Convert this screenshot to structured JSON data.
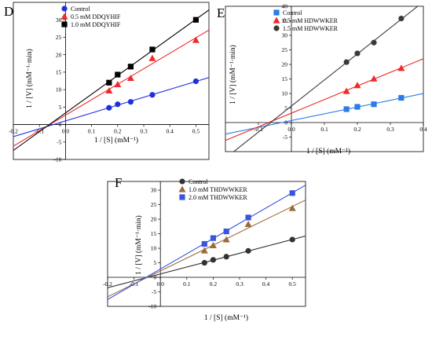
{
  "chart_data": [
    {
      "type": "scatter",
      "panel_label": "D",
      "title": "",
      "xlabel": "1 / [S] (mM⁻¹)",
      "ylabel": "1 / [V] (mM⁻¹·min)",
      "xlim": [
        -0.2,
        0.55
      ],
      "ylim": [
        -10,
        35
      ],
      "x_ticks": [
        -0.2,
        -0.1,
        0.0,
        0.1,
        0.2,
        0.3,
        0.4,
        0.5
      ],
      "y_ticks": [
        -10,
        -5,
        0,
        5,
        10,
        15,
        20,
        25,
        30
      ],
      "x_tick_labels": [
        "-0.2",
        "-0.1",
        "0.0",
        "0.1",
        "0.2",
        "0.3",
        "0.4",
        "0.5"
      ],
      "y_tick_labels": [
        "-10",
        "-5",
        "0",
        "5",
        "10",
        "15",
        "20",
        "25",
        "30"
      ],
      "legend_position": "top-left",
      "grid": false,
      "series": [
        {
          "name": "Control",
          "color": "#1f2fe0",
          "marker": "circle",
          "fit": [
            -0.2,
            0.55
          ],
          "x": [
            0.167,
            0.2,
            0.25,
            0.333,
            0.5
          ],
          "y": [
            4.8,
            5.8,
            6.5,
            8.5,
            12.4
          ]
        },
        {
          "name": "0.5 mM  DDQYHIF",
          "color": "#ee2a2a",
          "marker": "triangle",
          "fit": [
            -0.2,
            0.55
          ],
          "x": [
            0.167,
            0.2,
            0.25,
            0.333,
            0.5
          ],
          "y": [
            9.7,
            11.5,
            13.3,
            19.0,
            24.2
          ]
        },
        {
          "name": "1.0 mM  DDQYHIF",
          "color": "#000000",
          "marker": "square",
          "fit": [
            -0.2,
            0.55
          ],
          "x": [
            0.167,
            0.2,
            0.25,
            0.333,
            0.5
          ],
          "y": [
            12.0,
            14.3,
            16.6,
            21.5,
            30.0
          ]
        }
      ]
    },
    {
      "type": "scatter",
      "panel_label": "E",
      "title": "",
      "xlabel": "1 / [S] (mM⁻¹)",
      "ylabel": "1 / [V] (mM⁻¹·min)",
      "xlim": [
        -0.2,
        0.4
      ],
      "ylim": [
        -10,
        40
      ],
      "x_ticks": [
        -0.1,
        0.0,
        0.1,
        0.2,
        0.3,
        0.4
      ],
      "y_ticks": [
        -5,
        0,
        5,
        10,
        15,
        20,
        25,
        30,
        35,
        40
      ],
      "x_tick_labels": [
        "-0.1",
        "0.0",
        "0.1",
        "0.2",
        "0.3",
        "0.4"
      ],
      "y_tick_labels": [
        "-5",
        "0",
        "5",
        "10",
        "15",
        "20",
        "25",
        "30",
        "35",
        "40"
      ],
      "legend_position": "top-left",
      "grid": false,
      "series": [
        {
          "name": "Control",
          "color": "#2b7ce6",
          "marker": "square",
          "fit": [
            -0.2,
            0.4
          ],
          "x": [
            0.167,
            0.2,
            0.25,
            0.333
          ],
          "y": [
            4.6,
            5.4,
            6.3,
            8.5
          ]
        },
        {
          "name": "0.5 mM  HDWWKER",
          "color": "#ee2a2a",
          "marker": "triangle",
          "fit": [
            -0.2,
            0.4
          ],
          "x": [
            0.167,
            0.2,
            0.25,
            0.333
          ],
          "y": [
            10.8,
            12.8,
            15.1,
            18.7
          ]
        },
        {
          "name": "1.5 mM  HDWWKER",
          "color": "#3a3a3a",
          "marker": "circle",
          "fit": [
            -0.2,
            0.4
          ],
          "x": [
            0.167,
            0.2,
            0.25,
            0.333
          ],
          "y": [
            20.8,
            23.8,
            27.5,
            35.8
          ]
        }
      ]
    },
    {
      "type": "scatter",
      "panel_label": "F",
      "title": "",
      "xlabel": "1 / [S] (mM⁻¹)",
      "ylabel": "1 / [V] (mM⁻¹·min)",
      "xlim": [
        -0.2,
        0.55
      ],
      "ylim": [
        -10,
        33
      ],
      "x_ticks": [
        -0.2,
        -0.1,
        0.0,
        0.1,
        0.2,
        0.3,
        0.4,
        0.5
      ],
      "y_ticks": [
        -10,
        -5,
        0,
        5,
        10,
        15,
        20,
        25,
        30
      ],
      "x_tick_labels": [
        "-0.2",
        "-0.1",
        "0.0",
        "0.1",
        "0.2",
        "0.3",
        "0.4",
        "0.5"
      ],
      "y_tick_labels": [
        "-10",
        "-5",
        "0",
        "5",
        "10",
        "15",
        "20",
        "25",
        "30"
      ],
      "legend_position": "top-left",
      "grid": false,
      "series": [
        {
          "name": "Control",
          "color": "#333333",
          "marker": "circle",
          "fit": [
            -0.2,
            0.55
          ],
          "x": [
            0.167,
            0.2,
            0.25,
            0.333,
            0.5
          ],
          "y": [
            5.0,
            6.0,
            7.1,
            9.1,
            13.0
          ]
        },
        {
          "name": "1.0 mM  THDWWKER",
          "color": "#9a6a3c",
          "marker": "triangle",
          "fit": [
            -0.2,
            0.55
          ],
          "x": [
            0.167,
            0.2,
            0.25,
            0.333,
            0.5
          ],
          "y": [
            9.2,
            11.0,
            13.0,
            18.3,
            23.8
          ]
        },
        {
          "name": "2.0 mM  THDWWKER",
          "color": "#3a55dd",
          "marker": "square",
          "fit": [
            -0.2,
            0.55
          ],
          "x": [
            0.167,
            0.2,
            0.25,
            0.333,
            0.5
          ],
          "y": [
            11.5,
            13.5,
            15.8,
            20.6,
            29.0
          ]
        }
      ]
    }
  ]
}
